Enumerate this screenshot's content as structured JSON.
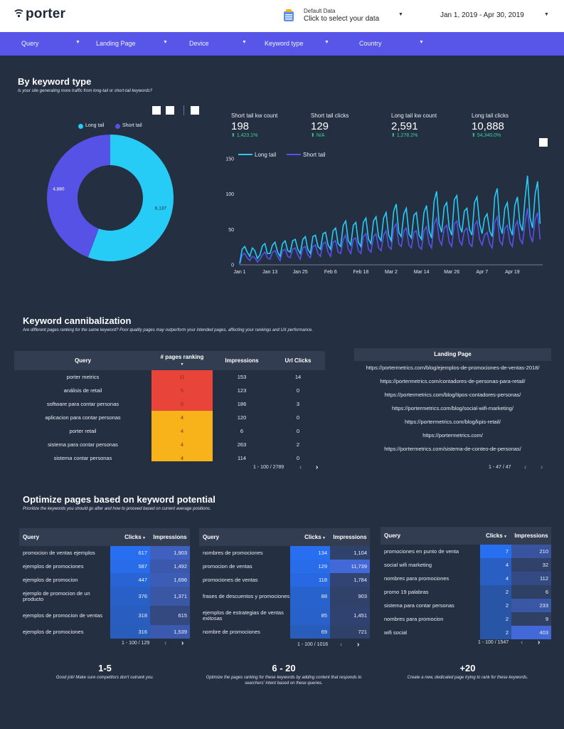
{
  "header": {
    "logo": "porter",
    "data_source_title": "Default Data",
    "data_source_action": "Click to select your data",
    "date_range": "Jan 1, 2019 - Apr 30, 2019"
  },
  "filters": [
    "Query",
    "Landing Page",
    "Device",
    "Keyword type",
    "Country"
  ],
  "keyword_type": {
    "title": "By keyword type",
    "subtitle": "Is your site generating more traffic from long-tail or short-tail keywords?",
    "donut": {
      "legend": [
        "Long tail",
        "Short tail"
      ],
      "values": [
        6137,
        4880
      ],
      "labels": [
        "6,137",
        "4,880"
      ],
      "colors": [
        "#27ccf6",
        "#5652e6"
      ]
    },
    "kpis": [
      {
        "label": "Short tail kw count",
        "value": "198",
        "change": "1,423.1%"
      },
      {
        "label": "Short tail clicks",
        "value": "129",
        "change": "N/A"
      },
      {
        "label": "Long tail kw count",
        "value": "2,591",
        "change": "1,278.2%"
      },
      {
        "label": "Long tail clicks",
        "value": "10,888",
        "change": "54,340.0%"
      }
    ]
  },
  "chart_data": {
    "type": "line",
    "title": "",
    "xlabel": "",
    "ylabel": "",
    "ylim": [
      0,
      150
    ],
    "yticks": [
      0,
      50,
      100,
      150
    ],
    "xticks": [
      "Jan 1",
      "Jan 13",
      "Jan 25",
      "Feb 6",
      "Feb 18",
      "Mar 2",
      "Mar 14",
      "Mar 26",
      "Apr 7",
      "Apr 19"
    ],
    "x_start": "Jan 1",
    "x_days": 120,
    "series": [
      {
        "name": "Long tail",
        "color": "#27ccf6",
        "values": [
          2,
          22,
          26,
          18,
          12,
          24,
          20,
          9,
          14,
          27,
          30,
          16,
          16,
          28,
          32,
          18,
          12,
          30,
          34,
          20,
          18,
          34,
          36,
          22,
          16,
          36,
          40,
          22,
          16,
          40,
          42,
          26,
          22,
          44,
          46,
          28,
          22,
          48,
          52,
          30,
          26,
          56,
          62,
          34,
          28,
          56,
          60,
          32,
          26,
          60,
          66,
          36,
          30,
          62,
          68,
          40,
          34,
          66,
          74,
          42,
          34,
          76,
          86,
          46,
          40,
          72,
          80,
          44,
          38,
          70,
          74,
          42,
          36,
          74,
          84,
          48,
          38,
          90,
          104,
          58,
          46,
          82,
          88,
          52,
          42,
          92,
          98,
          56,
          46,
          76,
          80,
          50,
          42,
          88,
          96,
          58,
          44,
          66,
          72,
          48,
          40,
          96,
          108,
          56,
          44,
          80,
          88,
          52,
          42,
          84,
          96,
          58,
          48,
          92,
          126,
          66,
          52,
          100,
          118,
          58
        ]
      },
      {
        "name": "Short tail",
        "color": "#5652e6",
        "values": [
          0,
          14,
          16,
          10,
          6,
          12,
          10,
          4,
          8,
          14,
          18,
          10,
          8,
          18,
          20,
          12,
          6,
          20,
          22,
          12,
          10,
          22,
          24,
          14,
          8,
          24,
          26,
          14,
          10,
          26,
          28,
          16,
          12,
          30,
          32,
          18,
          12,
          32,
          34,
          18,
          16,
          36,
          42,
          22,
          16,
          36,
          38,
          20,
          16,
          40,
          44,
          22,
          18,
          40,
          44,
          24,
          20,
          42,
          48,
          26,
          22,
          52,
          58,
          30,
          26,
          48,
          52,
          28,
          24,
          46,
          48,
          26,
          22,
          48,
          54,
          30,
          24,
          58,
          66,
          36,
          28,
          52,
          56,
          32,
          26,
          58,
          62,
          34,
          28,
          48,
          52,
          30,
          26,
          56,
          62,
          36,
          28,
          42,
          46,
          30,
          24,
          60,
          68,
          34,
          28,
          52,
          56,
          32,
          26,
          54,
          62,
          36,
          30,
          58,
          80,
          42,
          32,
          64,
          74,
          36
        ]
      }
    ]
  },
  "cannibal": {
    "title": "Keyword cannibalization",
    "subtitle": "Are different pages ranking for the same keyword? Poor quality pages may outperform your intended pages, affecting your rankings and UX performance.",
    "columns": [
      "Query",
      "# pages ranking",
      "Impressions",
      "Url Clicks"
    ],
    "rows": [
      {
        "query": "porter metrics",
        "pages": "11",
        "impr": "153",
        "clicks": "14",
        "color": "#e8443a"
      },
      {
        "query": "análisis de retail",
        "pages": "5",
        "impr": "123",
        "clicks": "0",
        "color": "#e8443a"
      },
      {
        "query": "software para contar personas",
        "pages": "5",
        "impr": "186",
        "clicks": "3",
        "color": "#e8443a"
      },
      {
        "query": "aplicacion para contar personas",
        "pages": "4",
        "impr": "120",
        "clicks": "0",
        "color": "#f8b31a"
      },
      {
        "query": "porter retail",
        "pages": "4",
        "impr": "6",
        "clicks": "0",
        "color": "#f8b31a"
      },
      {
        "query": "sistema para contar personas",
        "pages": "4",
        "impr": "263",
        "clicks": "2",
        "color": "#f8b31a"
      },
      {
        "query": "sistema contar personas",
        "pages": "4",
        "impr": "114",
        "clicks": "0",
        "color": "#f8b31a"
      }
    ],
    "pager": "1 - 100 / 2789",
    "landing_header": "Landing Page",
    "landing": [
      "https://portermetrics.com/blog/ejemplos-de-promociones-de-ventas-2018/",
      "https://portermetrics.com/contadores-de-personas-para-retail/",
      "https://portermetrics.com/blog/tipos-contadores-personas/",
      "https://portermetrics.com/blog/social-wifi-marketing/",
      "https://portermetrics.com/blog/kpis-retail/",
      "https://portermetrics.com/",
      "https://portermetrics.com/sistema-de-conteo-de-personas/"
    ],
    "landing_pager": "1 - 47 / 47"
  },
  "optimize": {
    "title": "Optimize pages based on keyword potential",
    "subtitle": "Prioritize the keywords you should go after and how to proceed based on current average positions.",
    "col_query": "Query",
    "col_clicks": "Clicks",
    "col_impr": "Impressions",
    "tables": [
      {
        "pager": "1 - 100 / 129",
        "rows": [
          {
            "q": "promocion de ventas ejemplos",
            "c": "617",
            "i": "1,903",
            "cw": 1.0,
            "iw": 0.8
          },
          {
            "q": "ejemplos de promociones",
            "c": "587",
            "i": "1,492",
            "cw": 0.95,
            "iw": 0.63
          },
          {
            "q": "ejemplos de promocion",
            "c": "447",
            "i": "1,696",
            "cw": 0.72,
            "iw": 0.72
          },
          {
            "q": "ejemplo de promocion de un producto",
            "c": "376",
            "i": "1,371",
            "cw": 0.61,
            "iw": 0.58
          },
          {
            "q": "ejemplos de promocion de ventas",
            "c": "318",
            "i": "615",
            "cw": 0.52,
            "iw": 0.26
          },
          {
            "q": "ejemplos de promociones",
            "c": "316",
            "i": "1,539",
            "cw": 0.51,
            "iw": 0.65
          }
        ],
        "footer_title": "1-5",
        "footer_desc": "Good job! Make sure competitors don't outrank you."
      },
      {
        "pager": "1 - 100 / 1016",
        "rows": [
          {
            "q": "nombres de promociones",
            "c": "134",
            "i": "1,104",
            "cw": 1.0,
            "iw": 0.09
          },
          {
            "q": "promocion de ventas",
            "c": "129",
            "i": "11,739",
            "cw": 0.96,
            "iw": 1.0
          },
          {
            "q": "promociones de ventas",
            "c": "118",
            "i": "1,784",
            "cw": 0.88,
            "iw": 0.15
          },
          {
            "q": "frases de descuentos y promociones",
            "c": "88",
            "i": "903",
            "cw": 0.66,
            "iw": 0.08
          },
          {
            "q": "ejemplos de estrategias de ventas exitosas",
            "c": "85",
            "i": "1,451",
            "cw": 0.63,
            "iw": 0.12
          },
          {
            "q": "nombre de promociones",
            "c": "69",
            "i": "721",
            "cw": 0.51,
            "iw": 0.06
          }
        ],
        "footer_title": "6 - 20",
        "footer_desc": "Optimize the pages ranking for these keywords by adding content that responds to searchers' intent based on these queries."
      },
      {
        "pager": "1 - 100 / 1547",
        "rows": [
          {
            "q": "promociones en punto de venta",
            "c": "7",
            "i": "210",
            "cw": 1.0,
            "iw": 0.52
          },
          {
            "q": "social wifi marketing",
            "c": "4",
            "i": "32",
            "cw": 0.57,
            "iw": 0.08
          },
          {
            "q": "nombres para promociones",
            "c": "4",
            "i": "112",
            "cw": 0.57,
            "iw": 0.28
          },
          {
            "q": "promo 19 palabras",
            "c": "2",
            "i": "6",
            "cw": 0.29,
            "iw": 0.02
          },
          {
            "q": "sistema para contar personas",
            "c": "2",
            "i": "233",
            "cw": 0.29,
            "iw": 0.58
          },
          {
            "q": "nombres para promocion",
            "c": "2",
            "i": "9",
            "cw": 0.29,
            "iw": 0.02
          },
          {
            "q": "wifi social",
            "c": "2",
            "i": "403",
            "cw": 0.29,
            "iw": 1.0
          }
        ],
        "footer_title": "+20",
        "footer_desc": "Create a new, dedicated page trying to rank for these keywords."
      }
    ]
  }
}
